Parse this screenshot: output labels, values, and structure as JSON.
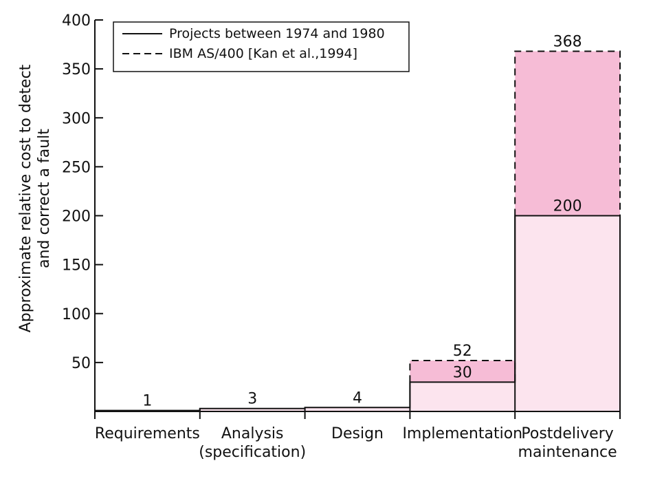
{
  "chart_data": {
    "type": "bar",
    "ylabel_lines": [
      "Approximate relative cost to detect",
      "and correct a fault"
    ],
    "categories": [
      [
        "Requirements"
      ],
      [
        "Analysis",
        "(specification)"
      ],
      [
        "Design"
      ],
      [
        "Implementation"
      ],
      [
        "Postdelivery",
        "maintenance"
      ]
    ],
    "series": [
      {
        "name": "Projects between 1974 and 1980",
        "line_style": "solid",
        "values": [
          1,
          3,
          4,
          30,
          200
        ],
        "value_labels": [
          "1",
          "3",
          "4",
          "30",
          "200"
        ]
      },
      {
        "name": "IBM AS/400 [Kan et al.,1994]",
        "line_style": "dashed",
        "values": [
          null,
          null,
          null,
          52,
          368
        ],
        "value_labels": [
          "",
          "",
          "",
          "52",
          "368"
        ]
      }
    ],
    "ylim": [
      0,
      400
    ],
    "yticks": [
      50,
      100,
      150,
      200,
      250,
      300,
      350,
      400
    ],
    "grid": false,
    "legend_position": "top-left",
    "colors": {
      "base_fill": "#fce4ee",
      "extra_fill": "#f6bcd6",
      "line": "#111111"
    }
  }
}
